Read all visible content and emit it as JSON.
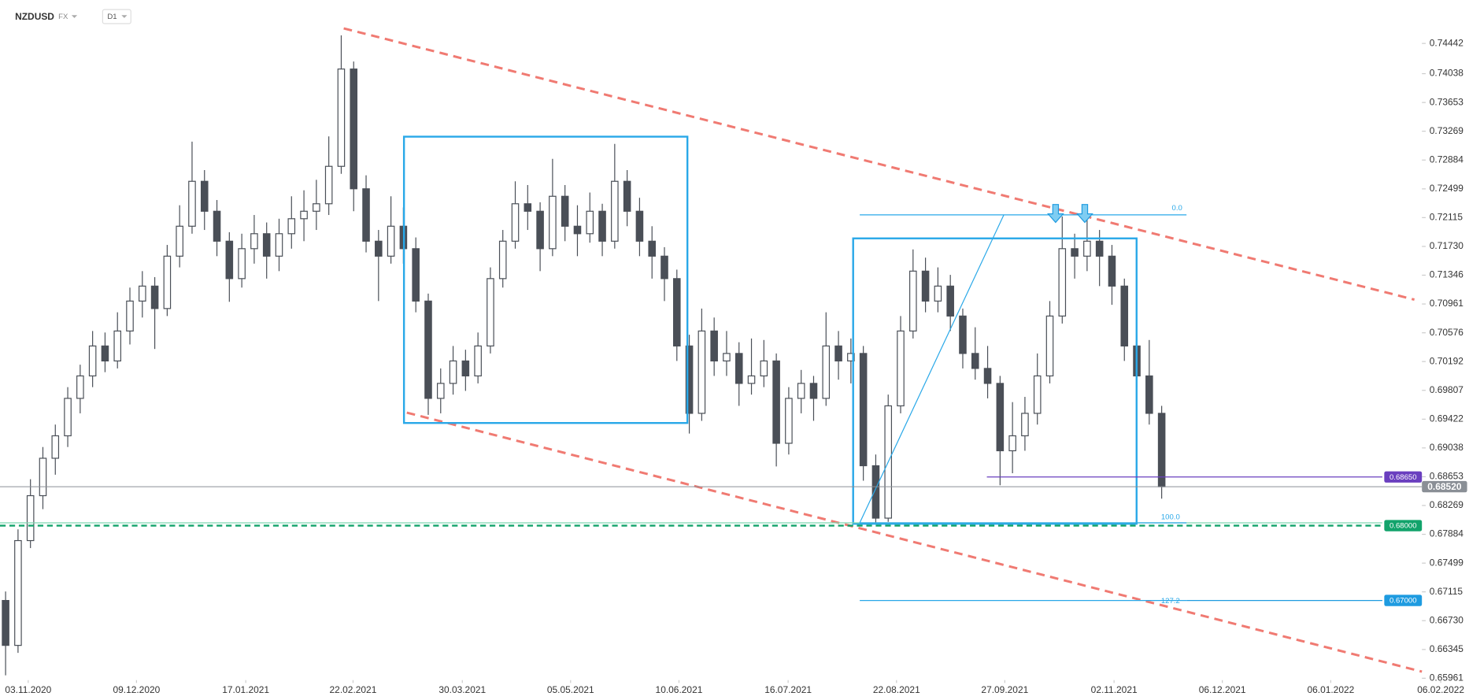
{
  "chart_data": {
    "type": "candlestick",
    "title": "NZDUSD",
    "market": "FX",
    "interval": "D1",
    "ylim": [
      0.65961,
      0.74895
    ],
    "xlim": [
      -0.45,
      115.45
    ],
    "yticks": [
      0.74442,
      0.74038,
      0.73653,
      0.73269,
      0.72884,
      0.72499,
      0.72115,
      {
        "value": 0.7173,
        "label": "0.71730"
      },
      0.71346,
      0.70961,
      0.70576,
      0.70192,
      0.69807,
      0.69422,
      0.69038,
      0.68653,
      0.68269,
      0.67884,
      0.67499,
      0.67115,
      {
        "value": 0.6673,
        "label": "0.66730"
      },
      0.66345,
      0.65961
    ],
    "xticks": [
      {
        "value": 1.82,
        "label": "03.11.2020"
      },
      {
        "value": 10.53,
        "label": "09.12.2020"
      },
      {
        "value": 19.32,
        "label": "17.01.2021"
      },
      {
        "value": 27.95,
        "label": "22.02.2021"
      },
      {
        "value": 36.74,
        "label": "30.03.2021"
      },
      {
        "value": 45.45,
        "label": "05.05.2021"
      },
      {
        "value": 54.17,
        "label": "10.06.2021"
      },
      {
        "value": 62.95,
        "label": "16.07.2021"
      },
      {
        "value": 71.67,
        "label": "22.08.2021"
      },
      {
        "value": 80.38,
        "label": "27.09.2021"
      },
      {
        "value": 89.17,
        "label": "02.11.2021"
      },
      {
        "value": 97.88,
        "label": "06.12.2021"
      },
      {
        "value": 106.6,
        "label": "06.01.2022"
      },
      {
        "value": 115.45,
        "label": "06.02.2022"
      }
    ],
    "up_color": "#ffffff",
    "down_color": "#4a4f57",
    "candles": [
      [
        0.67,
        0.6712,
        0.66,
        0.664
      ],
      [
        0.664,
        0.6795,
        0.663,
        0.678
      ],
      [
        0.678,
        0.6862,
        0.677,
        0.684
      ],
      [
        0.684,
        0.6905,
        0.6822,
        0.689
      ],
      [
        0.689,
        0.6935,
        0.6868,
        0.692
      ],
      [
        0.692,
        0.6985,
        0.6905,
        0.697
      ],
      [
        0.697,
        0.7015,
        0.695,
        0.7
      ],
      [
        0.7,
        0.706,
        0.6985,
        0.704
      ],
      [
        0.704,
        0.7058,
        0.7005,
        0.702
      ],
      [
        0.702,
        0.7085,
        0.701,
        0.706
      ],
      [
        0.706,
        0.7118,
        0.7042,
        0.71
      ],
      [
        0.71,
        0.714,
        0.7078,
        0.712
      ],
      [
        0.712,
        0.7132,
        0.7036,
        0.709
      ],
      [
        0.709,
        0.7175,
        0.708,
        0.716
      ],
      [
        0.716,
        0.7228,
        0.7145,
        0.72
      ],
      [
        0.72,
        0.7313,
        0.719,
        0.726
      ],
      [
        0.726,
        0.7275,
        0.7195,
        0.722
      ],
      [
        0.722,
        0.7235,
        0.716,
        0.718
      ],
      [
        0.718,
        0.7192,
        0.7099,
        0.713
      ],
      [
        0.713,
        0.719,
        0.7118,
        0.717
      ],
      [
        0.717,
        0.7215,
        0.715,
        0.719
      ],
      [
        0.719,
        0.7205,
        0.713,
        0.716
      ],
      [
        0.716,
        0.721,
        0.714,
        0.719
      ],
      [
        0.719,
        0.724,
        0.717,
        0.721
      ],
      [
        0.721,
        0.7248,
        0.718,
        0.722
      ],
      [
        0.722,
        0.7262,
        0.7195,
        0.723
      ],
      [
        0.723,
        0.732,
        0.7215,
        0.728
      ],
      [
        0.728,
        0.7455,
        0.727,
        0.741
      ],
      [
        0.741,
        0.742,
        0.722,
        0.725
      ],
      [
        0.725,
        0.7268,
        0.7165,
        0.718
      ],
      [
        0.718,
        0.7195,
        0.71,
        0.716
      ],
      [
        0.716,
        0.724,
        0.715,
        0.72
      ],
      [
        0.72,
        0.7225,
        0.715,
        0.717
      ],
      [
        0.717,
        0.7185,
        0.7085,
        0.71
      ],
      [
        0.71,
        0.711,
        0.6948,
        0.697
      ],
      [
        0.697,
        0.701,
        0.695,
        0.699
      ],
      [
        0.699,
        0.704,
        0.6975,
        0.702
      ],
      [
        0.702,
        0.7035,
        0.698,
        0.7
      ],
      [
        0.7,
        0.7058,
        0.699,
        0.704
      ],
      [
        0.704,
        0.7145,
        0.703,
        0.713
      ],
      [
        0.713,
        0.7195,
        0.7118,
        0.718
      ],
      [
        0.718,
        0.726,
        0.717,
        0.723
      ],
      [
        0.723,
        0.7255,
        0.7195,
        0.722
      ],
      [
        0.722,
        0.7232,
        0.714,
        0.717
      ],
      [
        0.717,
        0.729,
        0.716,
        0.724
      ],
      [
        0.724,
        0.7255,
        0.718,
        0.72
      ],
      [
        0.72,
        0.7228,
        0.716,
        0.719
      ],
      [
        0.719,
        0.7245,
        0.7178,
        0.722
      ],
      [
        0.722,
        0.723,
        0.716,
        0.718
      ],
      [
        0.718,
        0.731,
        0.717,
        0.726
      ],
      [
        0.726,
        0.7275,
        0.72,
        0.722
      ],
      [
        0.722,
        0.7238,
        0.716,
        0.718
      ],
      [
        0.718,
        0.72,
        0.713,
        0.716
      ],
      [
        0.716,
        0.7172,
        0.71,
        0.713
      ],
      [
        0.713,
        0.7142,
        0.702,
        0.704
      ],
      [
        0.704,
        0.7055,
        0.6923,
        0.695
      ],
      [
        0.695,
        0.709,
        0.694,
        0.706
      ],
      [
        0.706,
        0.7078,
        0.7,
        0.702
      ],
      [
        0.702,
        0.706,
        0.7,
        0.703
      ],
      [
        0.703,
        0.7045,
        0.696,
        0.699
      ],
      [
        0.699,
        0.705,
        0.6975,
        0.7
      ],
      [
        0.7,
        0.7048,
        0.6985,
        0.702
      ],
      [
        0.702,
        0.703,
        0.6879,
        0.691
      ],
      [
        0.691,
        0.6985,
        0.6895,
        0.697
      ],
      [
        0.697,
        0.7008,
        0.695,
        0.699
      ],
      [
        0.699,
        0.7,
        0.694,
        0.697
      ],
      [
        0.697,
        0.7085,
        0.696,
        0.704
      ],
      [
        0.704,
        0.706,
        0.6995,
        0.702
      ],
      [
        0.702,
        0.705,
        0.699,
        0.703
      ],
      [
        0.703,
        0.704,
        0.686,
        0.688
      ],
      [
        0.688,
        0.6895,
        0.6804,
        0.681
      ],
      [
        0.681,
        0.6975,
        0.6805,
        0.696
      ],
      [
        0.696,
        0.708,
        0.695,
        0.706
      ],
      [
        0.706,
        0.7169,
        0.705,
        0.714
      ],
      [
        0.714,
        0.7158,
        0.7085,
        0.71
      ],
      [
        0.71,
        0.7145,
        0.7085,
        0.712
      ],
      [
        0.712,
        0.7135,
        0.706,
        0.708
      ],
      [
        0.708,
        0.709,
        0.701,
        0.703
      ],
      [
        0.703,
        0.7065,
        0.6995,
        0.701
      ],
      [
        0.701,
        0.704,
        0.697,
        0.699
      ],
      [
        0.699,
        0.7,
        0.6854,
        0.69
      ],
      [
        0.69,
        0.6965,
        0.687,
        0.692
      ],
      [
        0.692,
        0.6972,
        0.69,
        0.695
      ],
      [
        0.695,
        0.703,
        0.6935,
        0.7
      ],
      [
        0.7,
        0.71,
        0.699,
        0.708
      ],
      [
        0.708,
        0.7213,
        0.707,
        0.717
      ],
      [
        0.717,
        0.719,
        0.713,
        0.716
      ],
      [
        0.716,
        0.7215,
        0.714,
        0.718
      ],
      [
        0.718,
        0.7195,
        0.712,
        0.716
      ],
      [
        0.716,
        0.7175,
        0.7095,
        0.712
      ],
      [
        0.712,
        0.713,
        0.702,
        0.704
      ],
      [
        0.704,
        0.7055,
        0.6985,
        0.7
      ],
      [
        0.7,
        0.7048,
        0.6935,
        0.695
      ],
      [
        0.695,
        0.696,
        0.6836,
        0.6852
      ]
    ],
    "levels": [
      {
        "value": 0.6865,
        "label": "0.68650",
        "color": "#6a3fbf"
      },
      {
        "value": 0.6852,
        "label": "0.68520",
        "color": "#8a8f96"
      },
      {
        "value": 0.68,
        "label": "0.68000",
        "color": "#12a36b"
      },
      {
        "value": 0.67,
        "label": "0.67000",
        "color": "#1e9be0"
      }
    ],
    "fib_labels": [
      "0.0",
      "100.0",
      "127.2"
    ]
  }
}
